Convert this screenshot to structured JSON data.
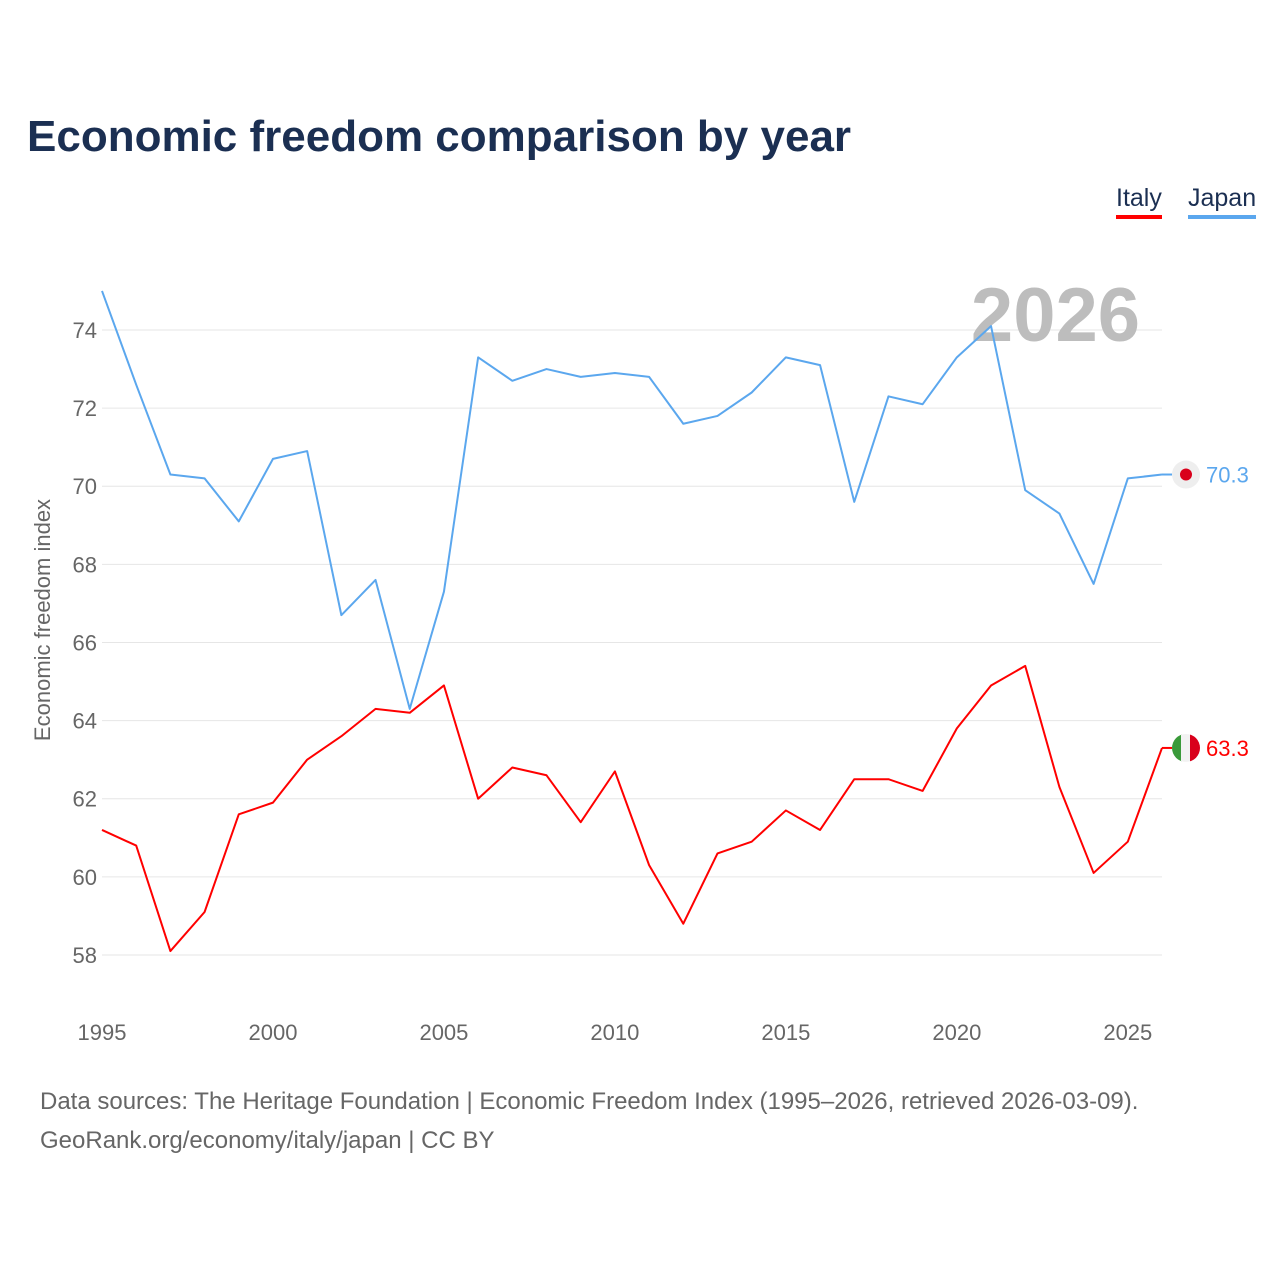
{
  "chart_data": {
    "type": "line",
    "title": "Economic freedom comparison by year",
    "xlabel": "",
    "ylabel": "Economic freedom index",
    "x": [
      1995,
      1996,
      1997,
      1998,
      1999,
      2000,
      2001,
      2002,
      2003,
      2004,
      2005,
      2006,
      2007,
      2008,
      2009,
      2010,
      2011,
      2012,
      2013,
      2014,
      2015,
      2016,
      2017,
      2018,
      2019,
      2020,
      2021,
      2022,
      2023,
      2024,
      2025,
      2026
    ],
    "xticks": [
      "1995",
      "2000",
      "2005",
      "2010",
      "2015",
      "2020",
      "2025"
    ],
    "yticks": [
      "58",
      "60",
      "62",
      "64",
      "66",
      "68",
      "70",
      "72",
      "74"
    ],
    "ylim": [
      57,
      75.5
    ],
    "grid": true,
    "legend_position": "top-right",
    "year_watermark": "2026",
    "series": [
      {
        "name": "Italy",
        "color": "#ff0000",
        "end_label": "63.3",
        "values": [
          61.2,
          60.8,
          58.1,
          59.1,
          61.6,
          61.9,
          63.0,
          63.6,
          64.3,
          64.2,
          64.9,
          62.0,
          62.8,
          62.6,
          61.4,
          62.7,
          60.3,
          58.8,
          60.6,
          60.9,
          61.7,
          61.2,
          62.5,
          62.5,
          62.2,
          63.8,
          64.9,
          65.4,
          62.3,
          60.1,
          60.9,
          63.3
        ]
      },
      {
        "name": "Japan",
        "color": "#5ba7ee",
        "end_label": "70.3",
        "values": [
          75.0,
          72.6,
          70.3,
          70.2,
          69.1,
          70.7,
          70.9,
          66.7,
          67.6,
          64.3,
          67.3,
          73.3,
          72.7,
          73.0,
          72.8,
          72.9,
          72.8,
          71.6,
          71.8,
          72.4,
          73.3,
          73.1,
          69.6,
          72.3,
          72.1,
          73.3,
          74.1,
          69.9,
          69.3,
          67.5,
          70.2,
          70.3
        ]
      }
    ]
  },
  "footer": {
    "line1": "Data sources: The Heritage Foundation | Economic Freedom Index (1995–2026, retrieved 2026-03-09).",
    "line2": "GeoRank.org/economy/italy/japan | CC BY"
  }
}
